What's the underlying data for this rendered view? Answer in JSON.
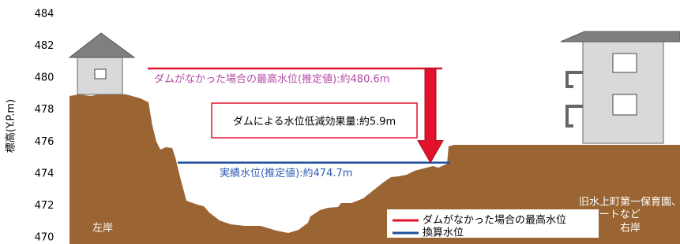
{
  "chart_data": {
    "type": "water-level-section",
    "y_label": "標高(Y.P.m)",
    "ylim": [
      470,
      484
    ],
    "yticks": [
      470,
      472,
      474,
      476,
      478,
      480,
      482,
      484
    ],
    "grid": false,
    "series": [
      {
        "name": "ダムがなかった場合の最高水位",
        "color": "#e3122b",
        "label_color": "#b54aa5",
        "values": [
          480.6
        ],
        "value_labels": [
          "ダムがなかった場合の最高水位(推定値):約480.6m"
        ]
      },
      {
        "name": "換算水位",
        "color": "#1f4e9a",
        "label_color": "#2e5bb8",
        "values": [
          474.7
        ],
        "value_labels": [
          "実績水位(推定値):約474.7m"
        ]
      }
    ],
    "annotation": "ダムによる水位低減効果量:約5.9m",
    "left_bank": "左岸",
    "right_bank": "右岸",
    "right_site": [
      "旧水上町第一保育園、",
      "アパートなど"
    ]
  }
}
